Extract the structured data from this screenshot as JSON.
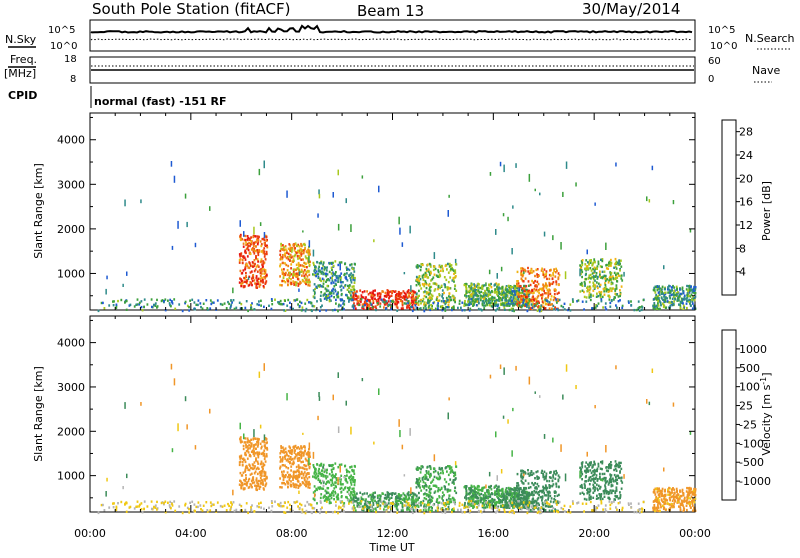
{
  "header": {
    "station": "South Pole Station (fitACF)",
    "beam": "Beam 13",
    "date": "30/May/2014"
  },
  "noise_panel": {
    "left_label": "N.Sky",
    "right_label": "N.Search",
    "left_ticks": [
      "10^5",
      "10^0"
    ],
    "right_ticks": [
      "10^5",
      "10^0"
    ]
  },
  "freq_panel": {
    "left_label_line1": "Freq.",
    "left_label_line2": "[MHz]",
    "right_label": "Nave",
    "left_ticks": [
      "18",
      "8"
    ],
    "right_ticks": [
      "60",
      "0"
    ]
  },
  "cpid_panel": {
    "label": "CPID",
    "text": "normal (fast) -151 RF"
  },
  "chart_data": [
    {
      "type": "heatmap",
      "quantity": "Power",
      "ylabel": "Slant Range [km]",
      "xlabel": "Time UT",
      "x_ticks": [
        "00:00",
        "04:00",
        "08:00",
        "12:00",
        "16:00",
        "20:00",
        "00:00"
      ],
      "x_range_hours": [
        0,
        24
      ],
      "y_ticks": [
        1000,
        2000,
        3000,
        4000
      ],
      "ylim": [
        180,
        4600
      ],
      "colorbar": {
        "label": "Power [dB]",
        "ticks": [
          "4",
          "8",
          "12",
          "16",
          "20",
          "24",
          "28"
        ],
        "range": [
          0,
          30
        ],
        "colors": [
          "#1414e6",
          "#1e5ad2",
          "#2e8a8a",
          "#3ca03c",
          "#a8c81e",
          "#f0b414",
          "#f08214",
          "#eb3c0f",
          "#e6140f"
        ]
      }
    },
    {
      "type": "heatmap",
      "quantity": "Velocity",
      "ylabel": "Slant Range [km]",
      "xlabel": "Time UT",
      "x_ticks": [
        "00:00",
        "04:00",
        "08:00",
        "12:00",
        "16:00",
        "20:00",
        "00:00"
      ],
      "x_range_hours": [
        0,
        24
      ],
      "y_ticks": [
        1000,
        2000,
        3000,
        4000
      ],
      "ylim": [
        180,
        4600
      ],
      "colorbar": {
        "label": "Velocity [m s-1]",
        "label_main": "Velocity",
        "label_unit": "[m s",
        "label_exp": "-1",
        "label_close": "]",
        "ticks": [
          "1000",
          "500",
          "100",
          "25",
          "-25",
          "-100",
          "-500",
          "-1000"
        ],
        "colors": [
          "#2828c8",
          "#2a5ab8",
          "#3c8c5a",
          "#46b446",
          "#b4b4b4",
          "#f0c814",
          "#f09628",
          "#f05a14",
          "#e61414"
        ]
      }
    }
  ],
  "echo_regions": [
    {
      "t0": 5.9,
      "t1": 7.0,
      "r0": 700,
      "r1": 1900,
      "power": 24,
      "velocity": -300
    },
    {
      "t0": 7.5,
      "t1": 8.7,
      "r0": 750,
      "r1": 1700,
      "power": 20,
      "velocity": -250
    },
    {
      "t0": 8.8,
      "t1": 10.5,
      "r0": 400,
      "r1": 1300,
      "power": 10,
      "velocity": 60
    },
    {
      "t0": 10.4,
      "t1": 12.9,
      "r0": 230,
      "r1": 650,
      "power": 27,
      "velocity": 110
    },
    {
      "t0": 12.9,
      "t1": 14.5,
      "r0": 230,
      "r1": 1250,
      "power": 14,
      "velocity": 90
    },
    {
      "t0": 14.8,
      "t1": 16.3,
      "r0": 300,
      "r1": 800,
      "power": 12,
      "velocity": 100
    },
    {
      "t0": 16.3,
      "t1": 17.4,
      "r0": 300,
      "r1": 750,
      "power": 11,
      "velocity": 120
    },
    {
      "t0": 16.9,
      "t1": 18.6,
      "r0": 230,
      "r1": 1150,
      "power": 22,
      "velocity": 300
    },
    {
      "t0": 19.4,
      "t1": 21.1,
      "r0": 480,
      "r1": 1350,
      "power": 14,
      "velocity": 200
    },
    {
      "t0": 22.3,
      "t1": 24.0,
      "r0": 230,
      "r1": 750,
      "power": 10,
      "velocity": -150
    },
    {
      "t0": 0.3,
      "t1": 22.0,
      "r0": 180,
      "r1": 450,
      "power": 9,
      "velocity": -30
    }
  ]
}
